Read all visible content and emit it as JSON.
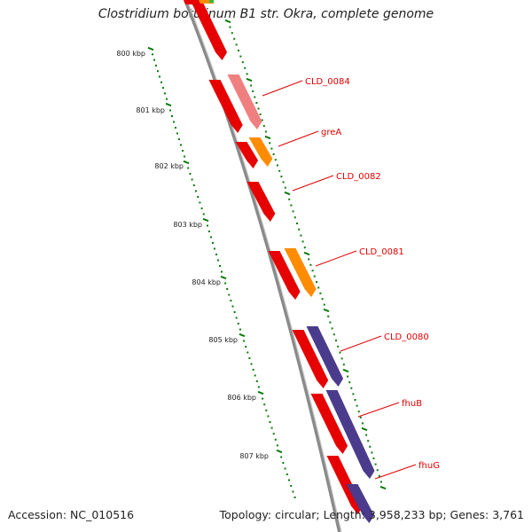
{
  "title": "Clostridium botulinum B1 str. Okra, complete genome",
  "footer": {
    "accession": "Accession: NC_010516",
    "topology": "Topology: circular; Length: 3,958,233 bp; Genes: 3,761"
  },
  "colors": {
    "backbone": "#8a8a8a",
    "ticks": "#0a7a0a",
    "gene_red": "#e60000",
    "gene_pink": "#f08080",
    "gene_orange": "#ff8c00",
    "gene_purple": "#4b3b8c",
    "label": "#e00000"
  },
  "kbp_labels": [
    "800 kbp",
    "801 kbp",
    "802 kbp",
    "803 kbp",
    "804 kbp",
    "805 kbp",
    "806 kbp",
    "807 kbp"
  ],
  "genes": [
    {
      "label": "",
      "color": "gene_red",
      "strand": "minus"
    },
    {
      "label": "CLD_0084",
      "color": "gene_pink",
      "strand": "minus"
    },
    {
      "label": "greA",
      "color": "gene_orange",
      "strand": "minus"
    },
    {
      "label": "CLD_0082",
      "color": "gene_red",
      "strand": "minus"
    },
    {
      "label": "CLD_0081",
      "color": "gene_orange",
      "strand": "minus"
    },
    {
      "label": "CLD_0080",
      "color": "gene_purple",
      "strand": "minus"
    },
    {
      "label": "fhuB",
      "color": "gene_purple",
      "strand": "minus"
    },
    {
      "label": "fhuG",
      "color": "gene_purple",
      "strand": "minus"
    }
  ]
}
